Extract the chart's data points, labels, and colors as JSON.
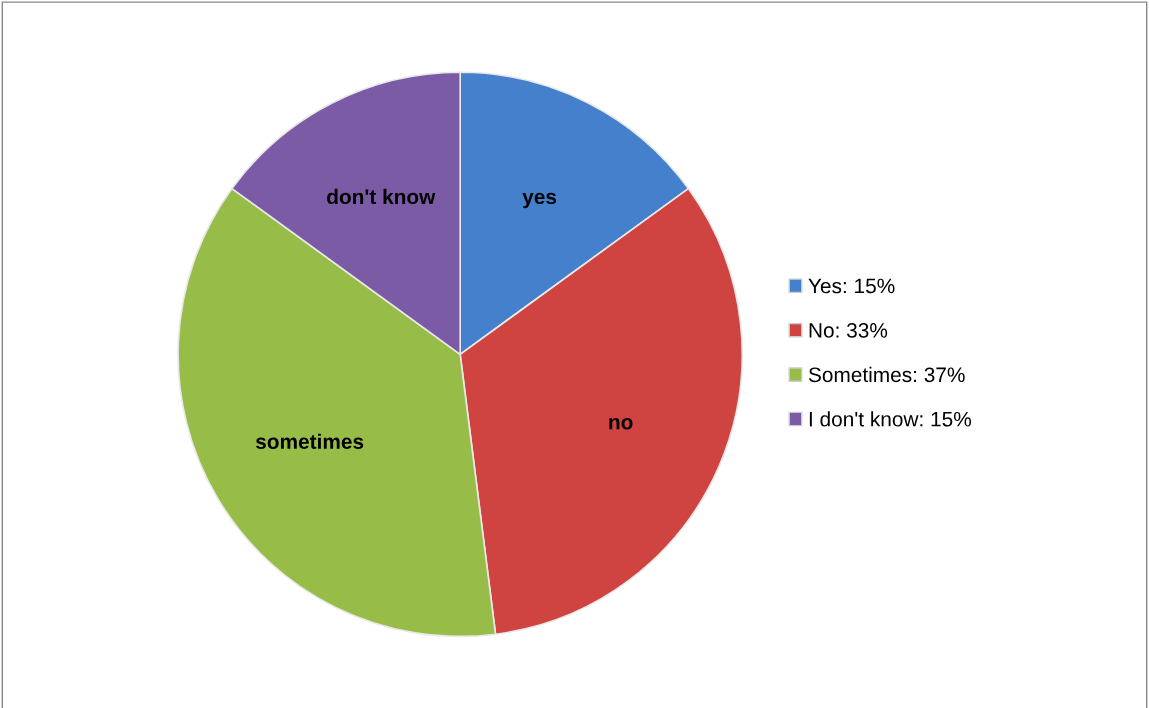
{
  "chart_data": {
    "type": "pie",
    "categories": [
      "Yes: 15%",
      "No: 33%",
      "Sometimes: 37%",
      "I don't know: 15%"
    ],
    "values": [
      15,
      33,
      37,
      15
    ],
    "colors": [
      "#4580cc",
      "#cf4440",
      "#97bd48",
      "#7b5aa6"
    ],
    "value_labels": [
      "yes",
      "no",
      "sometimes",
      "don't know"
    ],
    "legend": "right"
  }
}
